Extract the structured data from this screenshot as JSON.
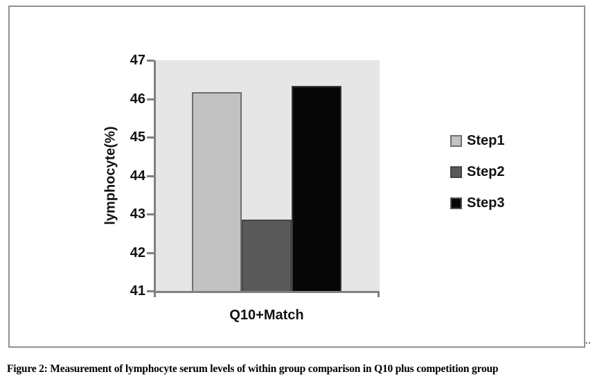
{
  "figure": {
    "caption": "Figure 2: Measurement of lymphocyte serum levels of within group comparison in Q10 plus competition group",
    "artifact_dots": ".."
  },
  "chart_data": {
    "type": "bar",
    "title": "",
    "categories": [
      "Q10+Match"
    ],
    "series": [
      {
        "name": "Step1",
        "values": [
          46.18
        ],
        "color": "#c2c2c2",
        "border_color": "#6e6e6e"
      },
      {
        "name": "Step2",
        "values": [
          42.85
        ],
        "color": "#595959",
        "border_color": "#474747"
      },
      {
        "name": "Step3",
        "values": [
          46.33
        ],
        "color": "#060606",
        "border_color": "#3a3a3a"
      }
    ],
    "xlabel": "",
    "ylabel": "lymphocyte(%)",
    "ylim": [
      41,
      47
    ],
    "yticks": [
      41,
      42,
      43,
      44,
      45,
      46,
      47
    ],
    "legend_position": "right",
    "legend_labels": [
      "Step1",
      "Step2",
      "Step3"
    ],
    "grid": false,
    "plot_background": "#e6e6e6",
    "axis_color": "#808080"
  }
}
